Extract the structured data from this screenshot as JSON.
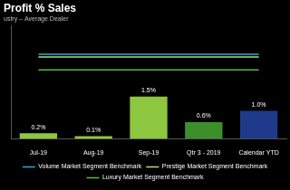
{
  "chart_data": {
    "type": "bar",
    "title": "Profit % Sales",
    "subtitle": "ustry – Average Dealer",
    "categories": [
      "Jul-19",
      "Aug-19",
      "Sep-19",
      "Qtr 3 - 2019",
      "Calendar YTD"
    ],
    "values": [
      0.2,
      0.1,
      1.5,
      0.6,
      1.0
    ],
    "value_labels": [
      "0.2%",
      "0.1%",
      "1.5%",
      "0.6%",
      "1.0%"
    ],
    "colors": [
      "#8dc63f",
      "#8dc63f",
      "#8dc63f",
      "#3e8e2a",
      "#1f3a8a"
    ],
    "data_labels": true,
    "series": [
      {
        "name": "Volume Market Segment Benchmark",
        "type": "line",
        "color": "#2aa8e0",
        "values": [
          3.0,
          3.0,
          3.0,
          3.0,
          3.0
        ]
      },
      {
        "name": "Prestige Market Segment Benchmark",
        "type": "line",
        "color": "#b5dc7a",
        "values": [
          2.9,
          2.9,
          2.9,
          2.9,
          2.9
        ]
      },
      {
        "name": "Luxury Market Segment Benchmark",
        "type": "line",
        "color": "#5fb548",
        "values": [
          2.45,
          2.45,
          2.45,
          2.45,
          2.45
        ]
      }
    ],
    "ylim": [
      0,
      4
    ],
    "tick_labels": "x",
    "grid": false,
    "legend": "bottom"
  }
}
